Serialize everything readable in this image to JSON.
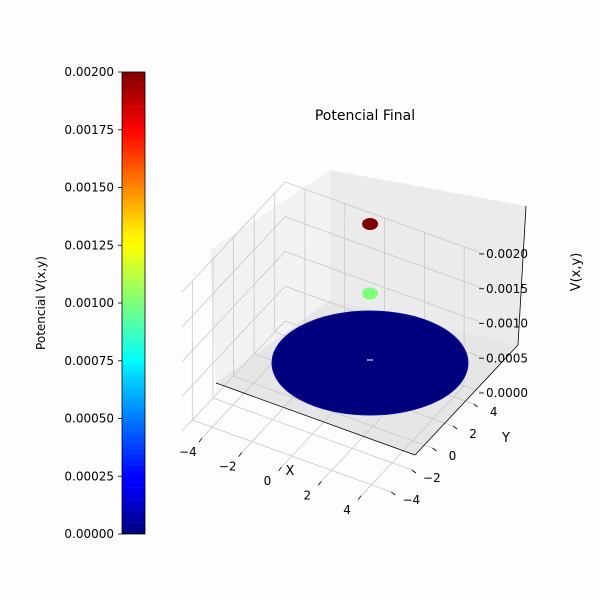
{
  "chart_data": {
    "type": "scatter3d",
    "title": "Potencial Final",
    "xlabel": "X",
    "ylabel": "Y",
    "zlabel": "V(x,y)",
    "xlim": [
      -5,
      5
    ],
    "ylim": [
      -5,
      5
    ],
    "zlim": [
      0,
      0.002
    ],
    "x_ticks": [
      "−4",
      "−2",
      "0",
      "2",
      "4"
    ],
    "y_ticks": [
      "−4",
      "−2",
      "0",
      "2",
      "4"
    ],
    "z_ticks": [
      "0.0000",
      "0.0005",
      "0.0010",
      "0.0015",
      "0.0020"
    ],
    "grid": true,
    "colormap": "jet",
    "colorbar": {
      "label": "Potencial V(x,y)",
      "range": [
        0,
        0.002
      ],
      "ticks": [
        "0.00000",
        "0.00025",
        "0.00050",
        "0.00075",
        "0.00100",
        "0.00125",
        "0.00150",
        "0.00175",
        "0.00200"
      ]
    },
    "series": [
      {
        "shape": "disk",
        "radius": 5,
        "center": [
          0,
          0
        ],
        "z": 0,
        "color": "#00007f"
      },
      {
        "shape": "point",
        "x": 0,
        "y": 0,
        "z": 0.001,
        "color": "#7dff7a"
      },
      {
        "shape": "point",
        "x": 0,
        "y": 0,
        "z": 0.002,
        "color": "#800000"
      }
    ]
  }
}
